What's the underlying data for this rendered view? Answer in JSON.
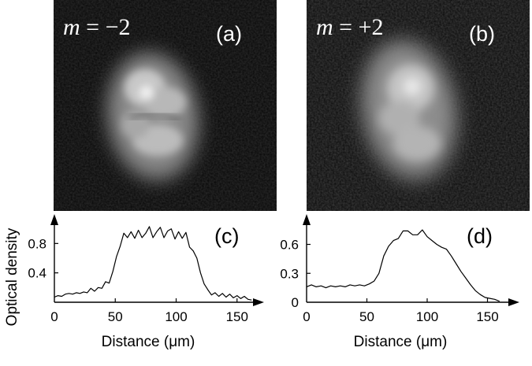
{
  "panels": {
    "a": {
      "letter": "(a)",
      "m_var": "m",
      "m_rest": " = −2"
    },
    "b": {
      "letter": "(b)",
      "m_var": "m",
      "m_rest": " = +2"
    },
    "c": {
      "letter": "(c)"
    },
    "d": {
      "letter": "(d)"
    }
  },
  "chart_data": [
    {
      "type": "line",
      "panel": "(c)",
      "xlabel": "Distance (μm)",
      "ylabel": "Optical density",
      "xlim": [
        0,
        170
      ],
      "ylim": [
        0,
        1.05
      ],
      "xticks": [
        0,
        50,
        100,
        150
      ],
      "xtick_labels": [
        "0",
        "50",
        "100",
        "150"
      ],
      "yticks": [
        0.4,
        0.8
      ],
      "ytick_labels": [
        "0.4",
        "0.8"
      ],
      "grid": false,
      "series": [
        {
          "x": [
            0,
            3,
            6,
            9,
            12,
            15,
            18,
            21,
            24,
            27,
            30,
            33,
            36,
            39,
            42,
            45,
            48,
            51,
            54,
            57,
            60,
            63,
            66,
            69,
            72,
            75,
            78,
            81,
            84,
            87,
            90,
            93,
            96,
            99,
            102,
            105,
            108,
            111,
            114,
            117,
            120,
            123,
            126,
            129,
            132,
            135,
            138,
            141,
            144,
            147,
            150,
            153,
            156,
            159,
            162
          ],
          "y": [
            0.07,
            0.09,
            0.08,
            0.11,
            0.12,
            0.11,
            0.13,
            0.12,
            0.14,
            0.13,
            0.19,
            0.15,
            0.2,
            0.19,
            0.28,
            0.26,
            0.42,
            0.62,
            0.76,
            0.94,
            0.88,
            0.96,
            0.87,
            0.98,
            0.88,
            0.94,
            1.03,
            0.88,
            0.96,
            1.02,
            0.88,
            0.97,
            1.0,
            0.86,
            0.96,
            0.87,
            0.95,
            0.75,
            0.7,
            0.6,
            0.4,
            0.25,
            0.17,
            0.1,
            0.13,
            0.08,
            0.12,
            0.07,
            0.11,
            0.06,
            0.09,
            0.05,
            0.08,
            0.04,
            0.03
          ]
        }
      ]
    },
    {
      "type": "line",
      "panel": "(d)",
      "xlabel": "Distance (μm)",
      "ylabel": "",
      "xlim": [
        0,
        170
      ],
      "ylim": [
        0,
        0.8
      ],
      "xticks": [
        0,
        50,
        100,
        150
      ],
      "xtick_labels": [
        "0",
        "50",
        "100",
        "150"
      ],
      "yticks": [
        0,
        0.3,
        0.6
      ],
      "ytick_labels": [
        "0",
        "0.3",
        "0.6"
      ],
      "grid": false,
      "series": [
        {
          "x": [
            0,
            4,
            8,
            12,
            16,
            20,
            24,
            28,
            32,
            36,
            40,
            44,
            48,
            52,
            56,
            60,
            64,
            68,
            72,
            76,
            80,
            84,
            88,
            92,
            96,
            100,
            104,
            108,
            112,
            116,
            120,
            124,
            128,
            132,
            136,
            140,
            144,
            148,
            152,
            156,
            160
          ],
          "y": [
            0.16,
            0.18,
            0.16,
            0.17,
            0.15,
            0.17,
            0.16,
            0.17,
            0.16,
            0.18,
            0.17,
            0.18,
            0.17,
            0.19,
            0.22,
            0.3,
            0.48,
            0.58,
            0.64,
            0.66,
            0.74,
            0.74,
            0.7,
            0.7,
            0.75,
            0.68,
            0.64,
            0.6,
            0.57,
            0.55,
            0.48,
            0.4,
            0.32,
            0.25,
            0.18,
            0.12,
            0.08,
            0.05,
            0.04,
            0.03,
            0.01
          ]
        }
      ]
    }
  ]
}
